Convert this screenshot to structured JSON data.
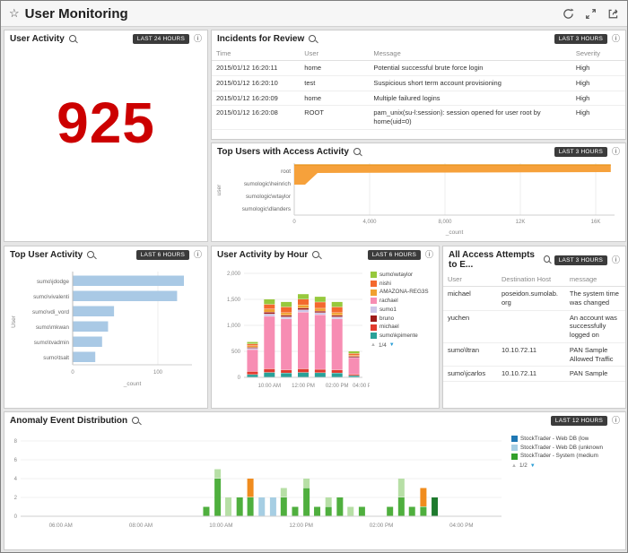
{
  "icons": {
    "star": "☆",
    "info": "ⓘ",
    "page_up": "▲",
    "page_down": "▼"
  },
  "header": {
    "title": "User Monitoring"
  },
  "user_activity": {
    "title": "User Activity",
    "badge": "LAST 24 HOURS",
    "value": "925",
    "color": "#CC0000"
  },
  "incidents": {
    "title": "Incidents for Review",
    "badge": "LAST 3 HOURS",
    "columns": [
      "Time",
      "User",
      "Message",
      "Severity"
    ],
    "rows": [
      [
        "2015/01/12 16:20:11",
        "home",
        "Potential successful brute force login",
        "High"
      ],
      [
        "2015/01/12 16:20:10",
        "test",
        "Suspicious short term account provisioning",
        "High"
      ],
      [
        "2015/01/12 16:20:09",
        "home",
        "Multiple failured logins",
        "High"
      ],
      [
        "2015/01/12 16:20:08",
        "ROOT",
        "pam_unix(su-l:session): session opened for user root by home(uid=0)",
        "High"
      ]
    ]
  },
  "top_users": {
    "title": "Top Users with Access Activity",
    "badge": "LAST 3 HOURS",
    "chart_data": {
      "type": "area",
      "orientation": "horizontal",
      "categories": [
        "root",
        "sumologic\\heinrich",
        "sumologic\\wtaylor",
        "sumologic\\dlanders"
      ],
      "values": [
        16800,
        350,
        180,
        90
      ],
      "xlabel": "_count",
      "ylabel": "user",
      "xticks": [
        {
          "v": 0,
          "label": "0"
        },
        {
          "v": 4000,
          "label": "4,000"
        },
        {
          "v": 8000,
          "label": "8,000"
        },
        {
          "v": 12000,
          "label": "12K"
        },
        {
          "v": 16000,
          "label": "16K"
        }
      ],
      "xlim": [
        0,
        17000
      ],
      "color": "#F6A13B"
    }
  },
  "top_user_activity": {
    "title": "Top User Activity",
    "badge": "LAST 6 HOURS",
    "chart_data": {
      "type": "bar",
      "orientation": "horizontal",
      "categories": [
        "sumo\\jdodge",
        "sumo\\vivalenti",
        "sumo\\vdi_vord",
        "sumo\\mkwan",
        "sumo\\tvadmin",
        "sumo\\tsalt"
      ],
      "values": [
        130,
        122,
        48,
        41,
        34,
        26
      ],
      "xlabel": "_count",
      "ylabel": "User",
      "xticks": [
        {
          "v": 0,
          "label": "0"
        },
        {
          "v": 100,
          "label": "100"
        }
      ],
      "xlim": [
        0,
        140
      ],
      "color": "#A9C9E5"
    }
  },
  "by_hour": {
    "title": "User Activity by Hour",
    "badge": "LAST 6 HOURS",
    "chart_data": {
      "type": "bar",
      "stacked": true,
      "x_labels": [
        "10:00 AM",
        "12:00 PM",
        "02:00 PM",
        "04:00 PM"
      ],
      "ylim": [
        0,
        2000
      ],
      "yticks": [
        {
          "v": 0,
          "label": "0"
        },
        {
          "v": 500,
          "label": "500"
        },
        {
          "v": 1000,
          "label": "1,000"
        },
        {
          "v": 1500,
          "label": "1,500"
        },
        {
          "v": 2000,
          "label": "2,000"
        }
      ],
      "series": [
        {
          "name": "sumo\\kpimente",
          "color": "#2AA198",
          "values": [
            50,
            90,
            80,
            90,
            85,
            80,
            30
          ]
        },
        {
          "name": "michael",
          "color": "#E23B2E",
          "values": [
            60,
            70,
            60,
            70,
            65,
            60,
            25
          ]
        },
        {
          "name": "rachael",
          "color": "#F78DB3",
          "values": [
            420,
            1010,
            980,
            1090,
            1050,
            980,
            320
          ]
        },
        {
          "name": "sumo1",
          "color": "#CDC6E8",
          "values": [
            25,
            45,
            40,
            45,
            40,
            40,
            15
          ]
        },
        {
          "name": "bruno",
          "color": "#9E1A1A",
          "values": [
            20,
            35,
            30,
            35,
            30,
            30,
            10
          ]
        },
        {
          "name": "AMAZONA-REG3S",
          "color": "#F0A030",
          "values": [
            30,
            60,
            50,
            60,
            55,
            50,
            20
          ]
        },
        {
          "name": "nishi",
          "color": "#F4692E",
          "values": [
            35,
            90,
            110,
            110,
            120,
            110,
            35
          ]
        },
        {
          "name": "sumo\\wtaylor",
          "color": "#97C93D",
          "values": [
            40,
            100,
            100,
            100,
            105,
            100,
            45
          ]
        }
      ],
      "legend_order": [
        "sumo\\wtaylor",
        "nishi",
        "AMAZONA-REG3S",
        "rachael",
        "sumo1",
        "bruno",
        "michael",
        "sumo\\kpimente"
      ],
      "pagination": "1/4"
    }
  },
  "all_access": {
    "title": "All Access Attempts to E...",
    "badge": "LAST 3 HOURS",
    "columns": [
      "User",
      "Destination Host",
      "message"
    ],
    "rows": [
      [
        "michael",
        "poseidon.sumolab.org",
        "The system time was changed"
      ],
      [
        "yuchen",
        "",
        "An account was successfully logged on"
      ],
      [
        "sumo\\ltran",
        "10.10.72.11",
        "PAN Sample Allowed Traffic"
      ],
      [
        "sumo\\jcarlos",
        "10.10.72.11",
        "PAN Sample"
      ]
    ]
  },
  "anomaly": {
    "title": "Anomaly Event Distribution",
    "badge": "LAST 12 HOURS",
    "chart_data": {
      "type": "bar",
      "stacked": true,
      "x_range_minutes": 720,
      "x_labels": [
        {
          "m": 60,
          "label": "06:00 AM"
        },
        {
          "m": 180,
          "label": "08:00 AM"
        },
        {
          "m": 300,
          "label": "10:00 AM"
        },
        {
          "m": 420,
          "label": "12:00 PM"
        },
        {
          "m": 540,
          "label": "02:00 PM"
        },
        {
          "m": 660,
          "label": "04:00 PM"
        }
      ],
      "ylim": [
        0,
        8
      ],
      "yticks": [
        0,
        2,
        4,
        6,
        8
      ],
      "colors": {
        "g": "#4FAF3E",
        "lg": "#B7DFA6",
        "lb": "#A6CEE3",
        "o": "#F08C1E",
        "dg": "#1E7A2E"
      },
      "bars": [
        {
          "m": 278,
          "segs": [
            [
              "g",
              1
            ]
          ]
        },
        {
          "m": 295,
          "segs": [
            [
              "g",
              4
            ],
            [
              "lg",
              1
            ]
          ]
        },
        {
          "m": 311,
          "segs": [
            [
              "lg",
              2
            ]
          ]
        },
        {
          "m": 328,
          "segs": [
            [
              "g",
              2
            ]
          ]
        },
        {
          "m": 344,
          "segs": [
            [
              "g",
              2
            ],
            [
              "o",
              2
            ]
          ]
        },
        {
          "m": 361,
          "segs": [
            [
              "lb",
              2
            ]
          ]
        },
        {
          "m": 378,
          "segs": [
            [
              "lb",
              2
            ]
          ]
        },
        {
          "m": 394,
          "segs": [
            [
              "g",
              2
            ],
            [
              "lg",
              1
            ]
          ]
        },
        {
          "m": 411,
          "segs": [
            [
              "g",
              1
            ]
          ]
        },
        {
          "m": 428,
          "segs": [
            [
              "g",
              3
            ],
            [
              "lg",
              1
            ]
          ]
        },
        {
          "m": 444,
          "segs": [
            [
              "g",
              1
            ]
          ]
        },
        {
          "m": 461,
          "segs": [
            [
              "g",
              1
            ],
            [
              "lg",
              1
            ]
          ]
        },
        {
          "m": 478,
          "segs": [
            [
              "g",
              2
            ]
          ]
        },
        {
          "m": 494,
          "segs": [
            [
              "lg",
              1
            ]
          ]
        },
        {
          "m": 511,
          "segs": [
            [
              "g",
              1
            ]
          ]
        },
        {
          "m": 553,
          "segs": [
            [
              "g",
              1
            ]
          ]
        },
        {
          "m": 570,
          "segs": [
            [
              "g",
              2
            ],
            [
              "lg",
              2
            ]
          ]
        },
        {
          "m": 586,
          "segs": [
            [
              "g",
              1
            ]
          ]
        },
        {
          "m": 603,
          "segs": [
            [
              "g",
              1
            ],
            [
              "o",
              2
            ]
          ]
        },
        {
          "m": 620,
          "segs": [
            [
              "dg",
              2
            ]
          ]
        }
      ],
      "legend": [
        {
          "color": "#1F78B4",
          "label": "StockTrader - Web DB (low"
        },
        {
          "color": "#A6CEE3",
          "label": "StockTrader - Web DB (unknown"
        },
        {
          "color": "#33A02C",
          "label": "StockTrader - System (medium"
        }
      ],
      "pagination": "1/2"
    }
  }
}
